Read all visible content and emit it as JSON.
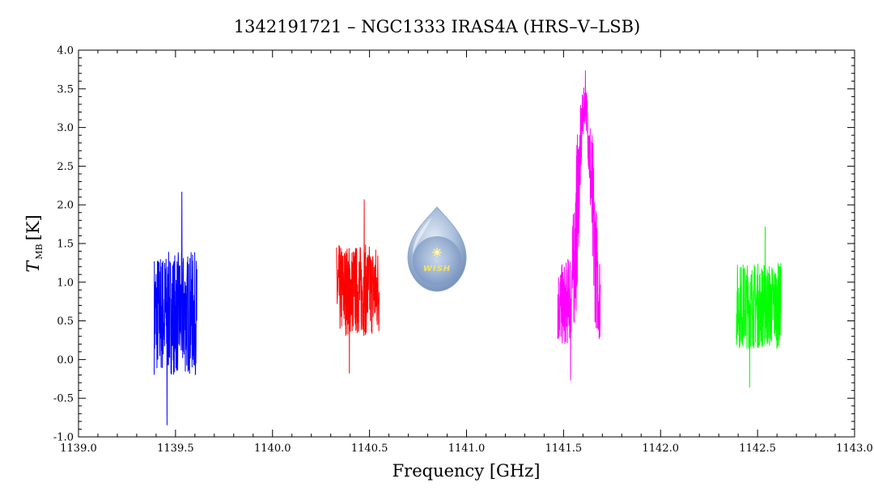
{
  "chart_data": {
    "type": "line",
    "title": "1342191721 – NGC1333 IRAS4A (HRS–V–LSB)",
    "xlabel": "Frequency [GHz]",
    "ylabel_main": "T",
    "ylabel_sub": "MB",
    "ylabel_unit": "[K]",
    "xlim": [
      1139.0,
      1143.0
    ],
    "ylim": [
      -1.0,
      4.0
    ],
    "x_ticks": [
      "1139.0",
      "1139.5",
      "1140.0",
      "1140.5",
      "1141.0",
      "1141.5",
      "1142.0",
      "1142.5",
      "1143.0"
    ],
    "y_ticks": [
      "-1.0",
      "-0.5",
      "0.0",
      "0.5",
      "1.0",
      "1.5",
      "2.0",
      "2.5",
      "3.0",
      "3.5",
      "4.0"
    ],
    "grid": false,
    "series": [
      {
        "color": "#0000ff",
        "x_range": [
          1139.39,
          1139.61
        ],
        "baseline": 0.6,
        "noise_range": [
          -0.85,
          2.17
        ]
      },
      {
        "color": "#ff0000",
        "x_range": [
          1140.33,
          1140.55
        ],
        "baseline": 0.9,
        "noise_range": [
          -0.18,
          2.07
        ]
      },
      {
        "color": "#ff00ff",
        "x_range": [
          1141.47,
          1141.69
        ],
        "baseline": 0.7,
        "peak_x": 1141.61,
        "peak_y": 3.74,
        "noise_range": [
          -0.27,
          3.74
        ]
      },
      {
        "color": "#00ff00",
        "x_range": [
          1142.39,
          1142.62
        ],
        "baseline": 0.7,
        "noise_range": [
          -0.36,
          1.72
        ]
      }
    ]
  },
  "logo": {
    "icon": "wish-droplet-logo",
    "text": "WISH"
  }
}
